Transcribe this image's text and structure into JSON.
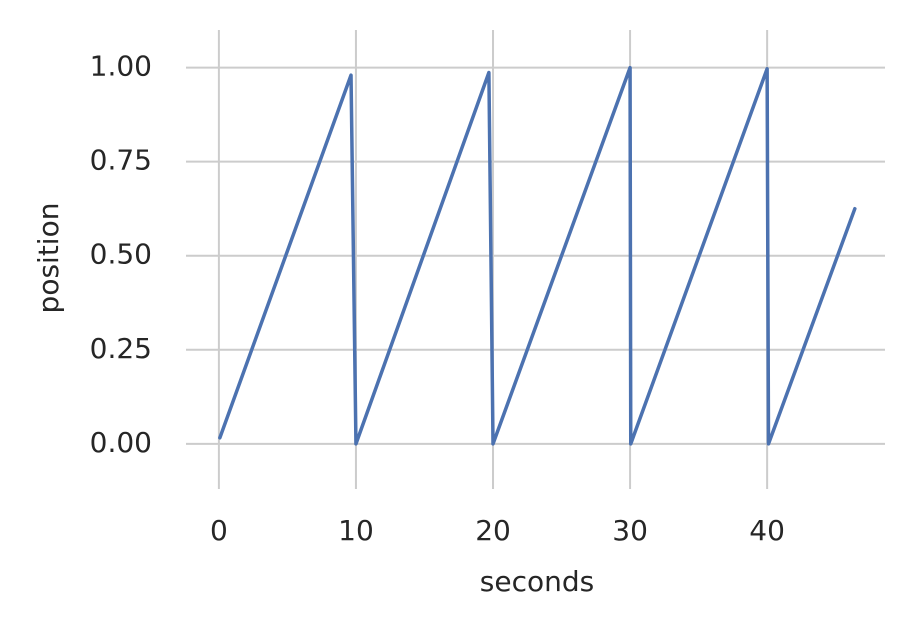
{
  "chart_data": {
    "type": "line",
    "x_label": "seconds",
    "y_label": "position",
    "x": [
      0.07,
      9.64,
      10.0,
      19.7,
      20.0,
      30.0,
      30.05,
      40.0,
      40.1,
      46.4
    ],
    "series": [
      {
        "color": "#4c72b0",
        "values": [
          0.016,
          0.98,
          0.0,
          0.987,
          0.0,
          1.0,
          0.0,
          0.997,
          0.0,
          0.625
        ]
      }
    ],
    "xlim": [
      -2.4,
      48.6
    ],
    "ylim": [
      -0.12,
      1.1
    ],
    "xticks": [
      0,
      10,
      20,
      30,
      40
    ],
    "yticks": [
      {
        "value": 0,
        "label": "0.00"
      },
      {
        "value": 0.25,
        "label": "0.25"
      },
      {
        "value": 0.5,
        "label": "0.50"
      },
      {
        "value": 0.75,
        "label": "0.75"
      },
      {
        "value": 1,
        "label": "1.00"
      }
    ],
    "grid": true
  }
}
